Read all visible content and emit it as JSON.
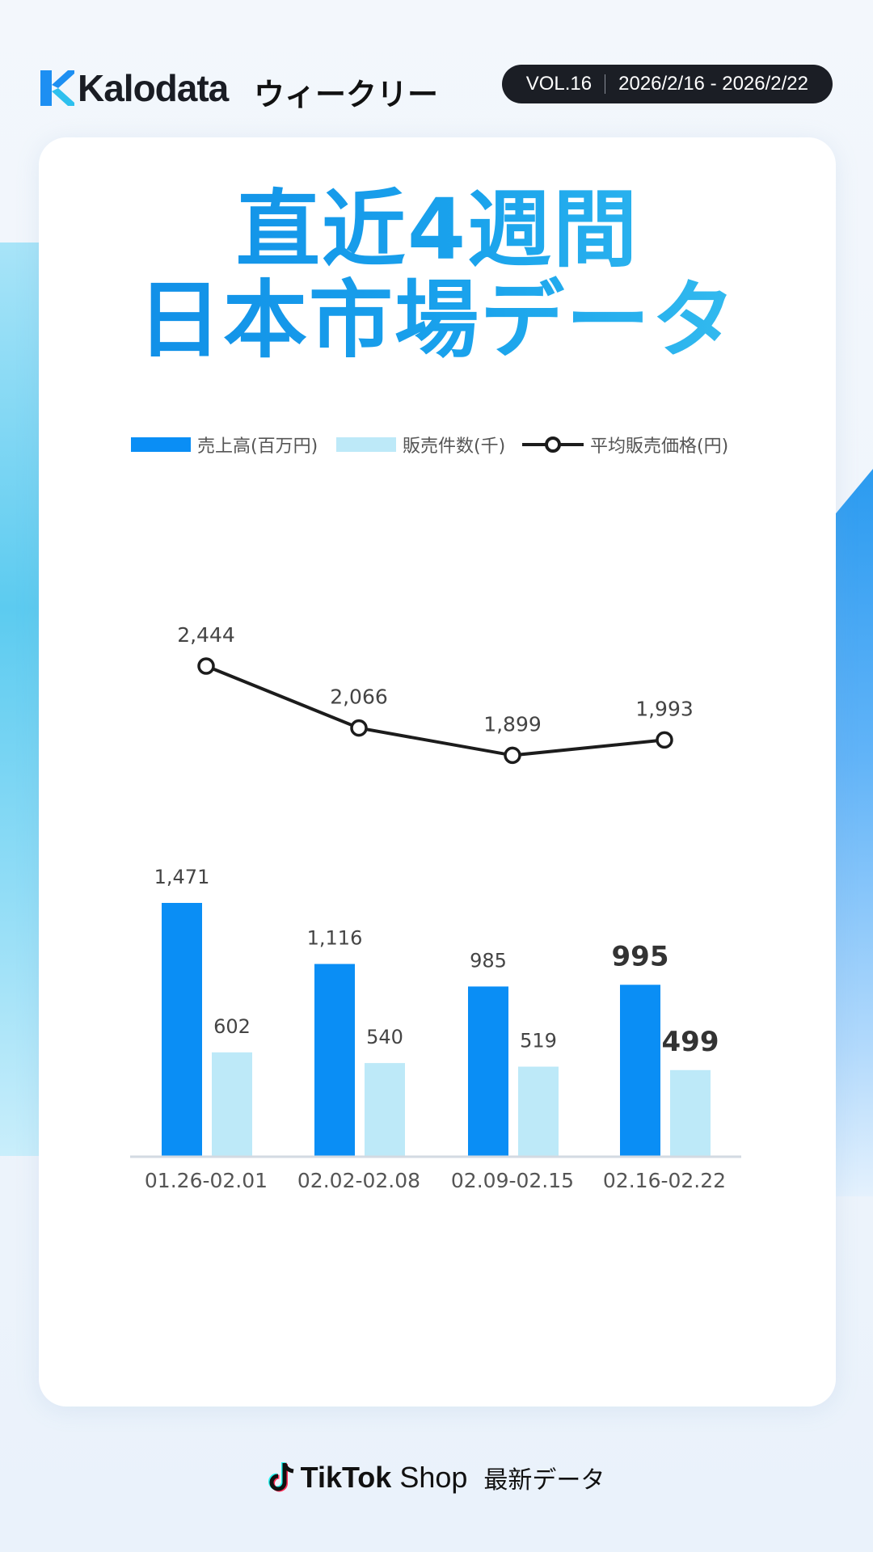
{
  "header": {
    "logo_text": "Kalodata",
    "weekly_label": "ウィークリー",
    "volume": "VOL.16",
    "date_range": "2026/2/16 - 2026/2/22"
  },
  "title": {
    "line1": "直近4週間",
    "line2": "日本市場データ"
  },
  "footer": {
    "brand": "TikTok",
    "shop": "Shop",
    "latest": "最新データ"
  },
  "colors": {
    "sales": "#0a8ef5",
    "count": "#bde9f8",
    "price_line": "#1c1c1c",
    "axis": "#d3dae2"
  },
  "chart_data": {
    "type": "bar",
    "categories": [
      "01.26-02.01",
      "02.02-02.08",
      "02.09-02.15",
      "02.16-02.22"
    ],
    "series": [
      {
        "name": "売上高(百万円)",
        "type": "bar",
        "values": [
          1471,
          1116,
          985,
          995
        ]
      },
      {
        "name": "販売件数(千)",
        "type": "bar",
        "values": [
          602,
          540,
          519,
          499
        ]
      },
      {
        "name": "平均販売価格(円)",
        "type": "line",
        "values": [
          2444,
          2066,
          1899,
          1993
        ]
      }
    ],
    "value_labels": {
      "sales": [
        "1,471",
        "1,116",
        "985",
        "995"
      ],
      "count": [
        "602",
        "540",
        "519",
        "499"
      ],
      "price": [
        "2,444",
        "2,066",
        "1,899",
        "1,993"
      ]
    },
    "legend_position": "top",
    "grid": false
  }
}
